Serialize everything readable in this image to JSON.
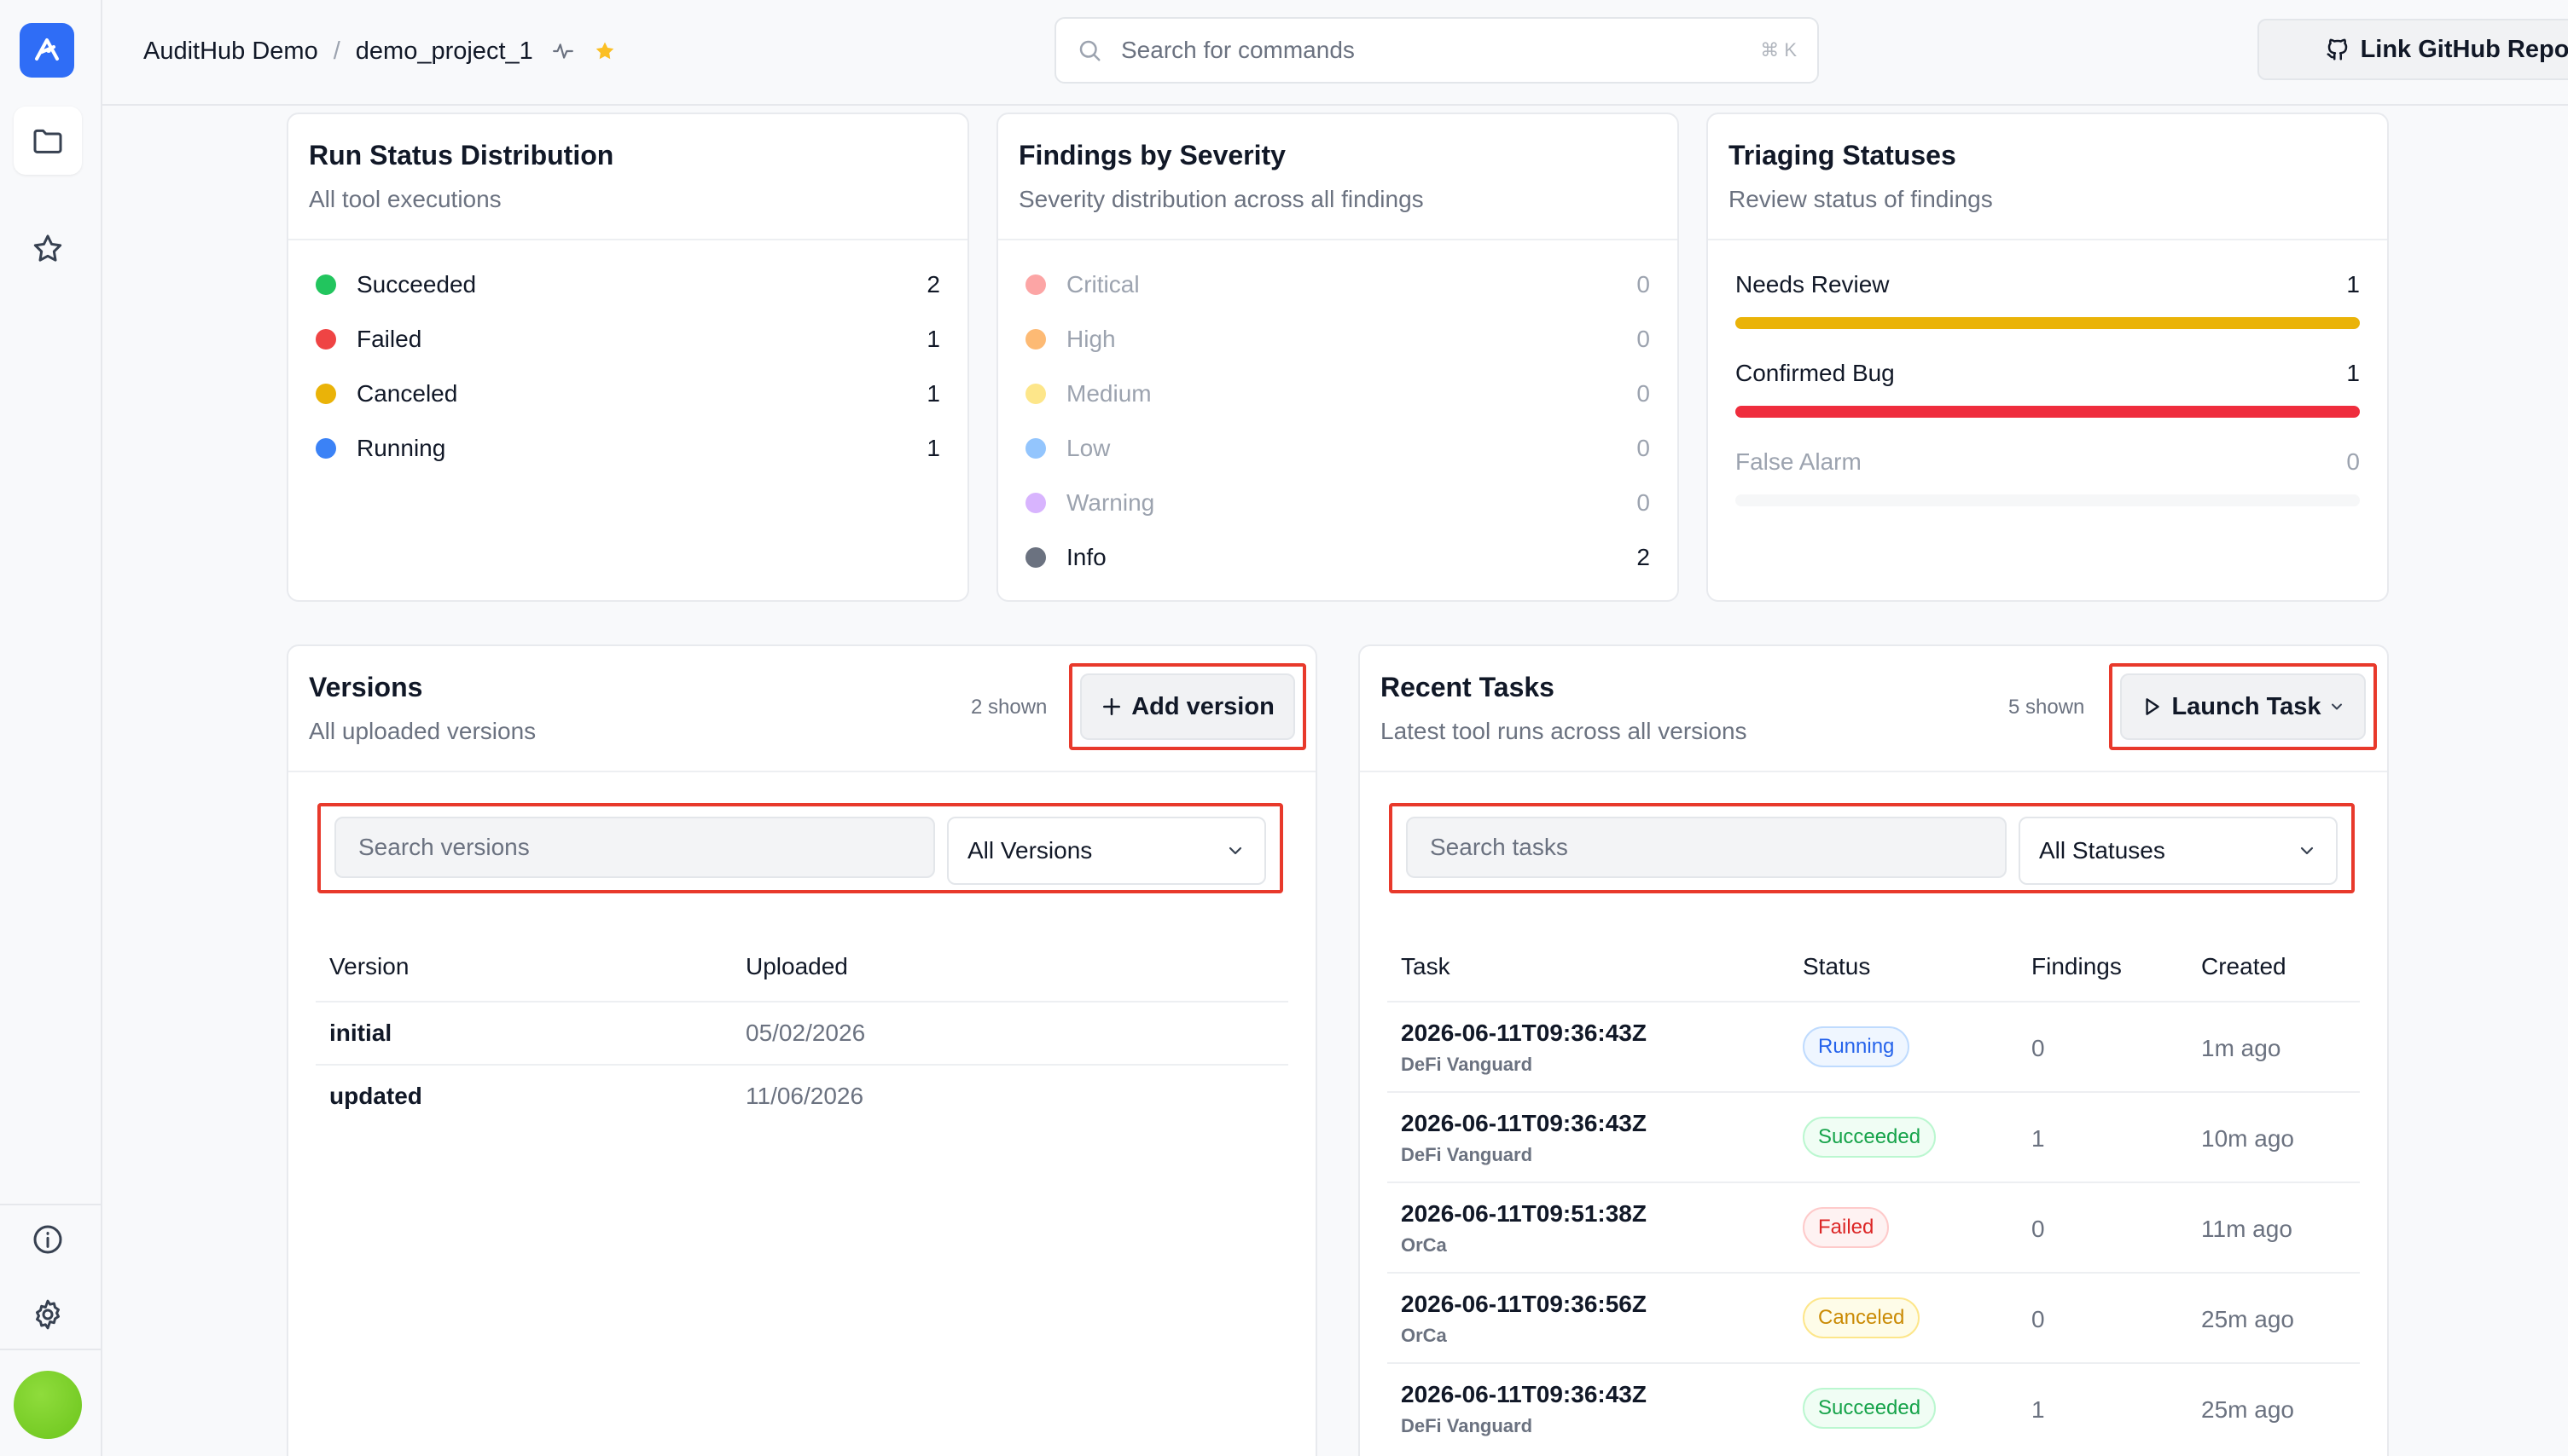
{
  "header": {
    "org": "AuditHub Demo",
    "separator": "/",
    "project": "demo_project_1",
    "search_placeholder": "Search for commands",
    "search_shortcut": "⌘ K",
    "github_label": "Link GitHub Repo"
  },
  "run_status": {
    "title": "Run Status Distribution",
    "subtitle": "All tool executions",
    "items": [
      {
        "label": "Succeeded",
        "count": "2",
        "color": "#22c55e"
      },
      {
        "label": "Failed",
        "count": "1",
        "color": "#ef4444"
      },
      {
        "label": "Canceled",
        "count": "1",
        "color": "#eab308"
      },
      {
        "label": "Running",
        "count": "1",
        "color": "#3b82f6"
      }
    ]
  },
  "severity": {
    "title": "Findings by Severity",
    "subtitle": "Severity distribution across all findings",
    "items": [
      {
        "label": "Critical",
        "count": "0",
        "color": "#fca5a5"
      },
      {
        "label": "High",
        "count": "0",
        "color": "#fdba74"
      },
      {
        "label": "Medium",
        "count": "0",
        "color": "#fde68a"
      },
      {
        "label": "Low",
        "count": "0",
        "color": "#93c5fd"
      },
      {
        "label": "Warning",
        "count": "0",
        "color": "#d8b4fe"
      },
      {
        "label": "Info",
        "count": "2",
        "color": "#6b7280"
      }
    ]
  },
  "triaging": {
    "title": "Triaging Statuses",
    "subtitle": "Review status of findings",
    "items": [
      {
        "label": "Needs Review",
        "count": "1",
        "color": "#eab308",
        "fraction": 1
      },
      {
        "label": "Confirmed Bug",
        "count": "1",
        "color": "#ef2d3d",
        "fraction": 1
      },
      {
        "label": "False Alarm",
        "count": "0",
        "color": "#e5e7eb",
        "fraction": 0
      }
    ]
  },
  "versions": {
    "title": "Versions",
    "subtitle": "All uploaded versions",
    "shown": "2 shown",
    "add_label": "Add version",
    "search_placeholder": "Search versions",
    "filter_value": "All Versions",
    "columns": [
      "Version",
      "Uploaded"
    ],
    "rows": [
      {
        "version": "initial",
        "uploaded": "05/02/2026"
      },
      {
        "version": "updated",
        "uploaded": "11/06/2026"
      }
    ]
  },
  "tasks": {
    "title": "Recent Tasks",
    "subtitle": "Latest tool runs across all versions",
    "shown": "5 shown",
    "launch_label": "Launch Task",
    "search_placeholder": "Search tasks",
    "filter_value": "All Statuses",
    "columns": [
      "Task",
      "Status",
      "Findings",
      "Created"
    ],
    "rows": [
      {
        "task": "2026-06-11T09:36:43Z",
        "tool": "DeFi Vanguard",
        "status": "Running",
        "findings": "0",
        "created": "1m ago"
      },
      {
        "task": "2026-06-11T09:36:43Z",
        "tool": "DeFi Vanguard",
        "status": "Succeeded",
        "findings": "1",
        "created": "10m ago"
      },
      {
        "task": "2026-06-11T09:51:38Z",
        "tool": "OrCa",
        "status": "Failed",
        "findings": "0",
        "created": "11m ago"
      },
      {
        "task": "2026-06-11T09:36:56Z",
        "tool": "OrCa",
        "status": "Canceled",
        "findings": "0",
        "created": "25m ago"
      },
      {
        "task": "2026-06-11T09:36:43Z",
        "tool": "DeFi Vanguard",
        "status": "Succeeded",
        "findings": "1",
        "created": "25m ago"
      }
    ]
  },
  "badge_colors": {
    "Running": {
      "fg": "#2563eb",
      "bg": "#eff6ff",
      "border": "#bfdbfe"
    },
    "Succeeded": {
      "fg": "#16a34a",
      "bg": "#f0fdf4",
      "border": "#bbf7d0"
    },
    "Failed": {
      "fg": "#dc2626",
      "bg": "#fef2f2",
      "border": "#fecaca"
    },
    "Canceled": {
      "fg": "#ca8a04",
      "bg": "#fefce8",
      "border": "#fde68a"
    }
  }
}
